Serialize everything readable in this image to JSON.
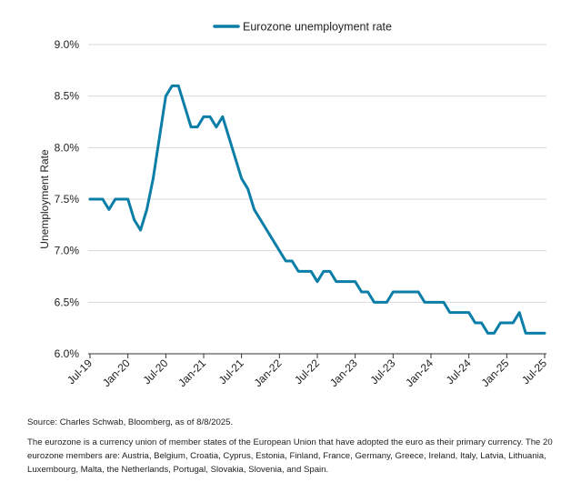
{
  "chart_data": {
    "type": "line",
    "legend": "Eurozone unemployment rate",
    "legend_position": "top-center",
    "ylabel": "Unemployment Rate",
    "xlabel": "",
    "ylim": [
      6.0,
      9.0
    ],
    "yticks": [
      {
        "value": 6.0,
        "label": "6.0%"
      },
      {
        "value": 6.5,
        "label": "6.5%"
      },
      {
        "value": 7.0,
        "label": "7.0%"
      },
      {
        "value": 7.5,
        "label": "7.5%"
      },
      {
        "value": 8.0,
        "label": "8.0%"
      },
      {
        "value": 8.5,
        "label": "8.5%"
      },
      {
        "value": 9.0,
        "label": "9.0%"
      }
    ],
    "xticks": [
      "Jul-19",
      "Jan-20",
      "Jul-20",
      "Jan-21",
      "Jul-21",
      "Jan-22",
      "Jul-22",
      "Jan-23",
      "Jul-23",
      "Jan-24",
      "Jul-24",
      "Jan-25",
      "Jul-25"
    ],
    "grid": "horizontal",
    "line_color": "#0b7ea8",
    "series": [
      {
        "name": "Eurozone unemployment rate",
        "start": "Jul-19",
        "frequency": "monthly",
        "values": [
          7.5,
          7.5,
          7.5,
          7.4,
          7.5,
          7.5,
          7.5,
          7.3,
          7.2,
          7.4,
          7.7,
          8.1,
          8.5,
          8.6,
          8.6,
          8.4,
          8.2,
          8.2,
          8.3,
          8.3,
          8.2,
          8.3,
          8.1,
          7.9,
          7.7,
          7.6,
          7.4,
          7.3,
          7.2,
          7.1,
          7.0,
          6.9,
          6.9,
          6.8,
          6.8,
          6.8,
          6.7,
          6.8,
          6.8,
          6.7,
          6.7,
          6.7,
          6.7,
          6.6,
          6.6,
          6.5,
          6.5,
          6.5,
          6.6,
          6.6,
          6.6,
          6.6,
          6.6,
          6.5,
          6.5,
          6.5,
          6.5,
          6.4,
          6.4,
          6.4,
          6.4,
          6.3,
          6.3,
          6.2,
          6.2,
          6.3,
          6.3,
          6.3,
          6.4,
          6.2,
          6.2,
          6.2,
          6.2
        ]
      }
    ]
  },
  "source": "Source: Charles Schwab, Bloomberg, as of 8/8/2025.",
  "footnote": "The eurozone is a currency union of member states of the European Union that have adopted the euro as their primary currency. The 20 eurozone members are: Austria, Belgium, Croatia, Cyprus, Estonia, Finland, France, Germany, Greece, Ireland, Italy, Latvia, Lithuania, Luxembourg, Malta, the Netherlands, Portugal, Slovakia, Slovenia, and Spain."
}
